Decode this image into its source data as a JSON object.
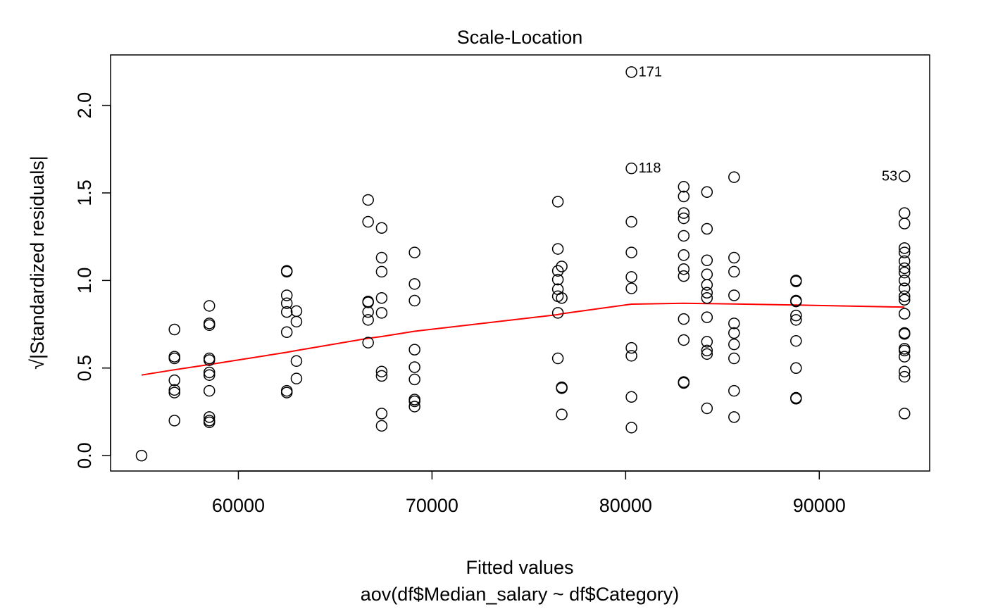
{
  "chart_data": {
    "type": "scatter",
    "title": "Scale-Location",
    "xlabel": "Fitted values",
    "subtitle": "aov(df$Median_salary ~ df$Category)",
    "ylabel_prefix": "√",
    "ylabel": "|Standardized residuals|",
    "xlim": [
      53400,
      95700
    ],
    "ylim": [
      -0.088,
      2.288
    ],
    "xticks": [
      60000,
      70000,
      80000,
      90000
    ],
    "yticks": [
      0.0,
      0.5,
      1.0,
      1.5,
      2.0
    ],
    "xtick_labels": [
      "60000",
      "70000",
      "80000",
      "90000"
    ],
    "ytick_labels": [
      "0.0",
      "0.5",
      "1.0",
      "1.5",
      "2.0"
    ],
    "grid": false,
    "legend": "none",
    "colors": {
      "points": "#000000",
      "smooth": "#ff0000"
    },
    "points": [
      {
        "x": 55000,
        "y": 0.0
      },
      {
        "x": 56700,
        "y": 0.72
      },
      {
        "x": 56700,
        "y": 0.565
      },
      {
        "x": 56700,
        "y": 0.555
      },
      {
        "x": 56700,
        "y": 0.43
      },
      {
        "x": 56700,
        "y": 0.375
      },
      {
        "x": 56700,
        "y": 0.36
      },
      {
        "x": 56700,
        "y": 0.2
      },
      {
        "x": 58500,
        "y": 0.855
      },
      {
        "x": 58500,
        "y": 0.755
      },
      {
        "x": 58500,
        "y": 0.745
      },
      {
        "x": 58500,
        "y": 0.555
      },
      {
        "x": 58500,
        "y": 0.545
      },
      {
        "x": 58500,
        "y": 0.475
      },
      {
        "x": 58500,
        "y": 0.46
      },
      {
        "x": 58500,
        "y": 0.37
      },
      {
        "x": 58500,
        "y": 0.22
      },
      {
        "x": 58500,
        "y": 0.2
      },
      {
        "x": 58500,
        "y": 0.19
      },
      {
        "x": 62500,
        "y": 1.055
      },
      {
        "x": 62500,
        "y": 1.05
      },
      {
        "x": 62500,
        "y": 0.915
      },
      {
        "x": 62500,
        "y": 0.87
      },
      {
        "x": 62500,
        "y": 0.82
      },
      {
        "x": 62500,
        "y": 0.705
      },
      {
        "x": 62500,
        "y": 0.37
      },
      {
        "x": 62500,
        "y": 0.36
      },
      {
        "x": 63000,
        "y": 0.825
      },
      {
        "x": 63000,
        "y": 0.765
      },
      {
        "x": 63000,
        "y": 0.54
      },
      {
        "x": 63000,
        "y": 0.44
      },
      {
        "x": 66700,
        "y": 1.46
      },
      {
        "x": 66700,
        "y": 1.335
      },
      {
        "x": 66700,
        "y": 0.88
      },
      {
        "x": 66700,
        "y": 0.875
      },
      {
        "x": 66700,
        "y": 0.82
      },
      {
        "x": 66700,
        "y": 0.775
      },
      {
        "x": 66700,
        "y": 0.645
      },
      {
        "x": 67400,
        "y": 1.3
      },
      {
        "x": 67400,
        "y": 1.13
      },
      {
        "x": 67400,
        "y": 1.05
      },
      {
        "x": 67400,
        "y": 0.9
      },
      {
        "x": 67400,
        "y": 0.815
      },
      {
        "x": 67400,
        "y": 0.48
      },
      {
        "x": 67400,
        "y": 0.455
      },
      {
        "x": 67400,
        "y": 0.24
      },
      {
        "x": 67400,
        "y": 0.17
      },
      {
        "x": 69100,
        "y": 1.16
      },
      {
        "x": 69100,
        "y": 0.98
      },
      {
        "x": 69100,
        "y": 0.885
      },
      {
        "x": 69100,
        "y": 0.605
      },
      {
        "x": 69100,
        "y": 0.505
      },
      {
        "x": 69100,
        "y": 0.435
      },
      {
        "x": 69100,
        "y": 0.32
      },
      {
        "x": 69100,
        "y": 0.31
      },
      {
        "x": 69100,
        "y": 0.28
      },
      {
        "x": 76500,
        "y": 1.45
      },
      {
        "x": 76500,
        "y": 1.18
      },
      {
        "x": 76500,
        "y": 1.055
      },
      {
        "x": 76500,
        "y": 1.005
      },
      {
        "x": 76500,
        "y": 0.95
      },
      {
        "x": 76500,
        "y": 0.91
      },
      {
        "x": 76500,
        "y": 0.815
      },
      {
        "x": 76500,
        "y": 0.555
      },
      {
        "x": 76700,
        "y": 1.08
      },
      {
        "x": 76700,
        "y": 0.9
      },
      {
        "x": 76700,
        "y": 0.39
      },
      {
        "x": 76700,
        "y": 0.385
      },
      {
        "x": 76700,
        "y": 0.235
      },
      {
        "x": 80300,
        "y": 2.19,
        "label": "171"
      },
      {
        "x": 80300,
        "y": 1.64,
        "label": "118"
      },
      {
        "x": 80300,
        "y": 1.335
      },
      {
        "x": 80300,
        "y": 1.16
      },
      {
        "x": 80300,
        "y": 1.02
      },
      {
        "x": 80300,
        "y": 0.955
      },
      {
        "x": 80300,
        "y": 0.615
      },
      {
        "x": 80300,
        "y": 0.57
      },
      {
        "x": 80300,
        "y": 0.335
      },
      {
        "x": 80300,
        "y": 0.16
      },
      {
        "x": 83000,
        "y": 1.535
      },
      {
        "x": 83000,
        "y": 1.48
      },
      {
        "x": 83000,
        "y": 1.385
      },
      {
        "x": 83000,
        "y": 1.355
      },
      {
        "x": 83000,
        "y": 1.255
      },
      {
        "x": 83000,
        "y": 1.145
      },
      {
        "x": 83000,
        "y": 1.065
      },
      {
        "x": 83000,
        "y": 1.025
      },
      {
        "x": 83000,
        "y": 0.78
      },
      {
        "x": 83000,
        "y": 0.66
      },
      {
        "x": 83000,
        "y": 0.42
      },
      {
        "x": 83000,
        "y": 0.415
      },
      {
        "x": 84200,
        "y": 1.505
      },
      {
        "x": 84200,
        "y": 1.295
      },
      {
        "x": 84200,
        "y": 1.115
      },
      {
        "x": 84200,
        "y": 1.035
      },
      {
        "x": 84200,
        "y": 0.975
      },
      {
        "x": 84200,
        "y": 0.93
      },
      {
        "x": 84200,
        "y": 0.9
      },
      {
        "x": 84200,
        "y": 0.79
      },
      {
        "x": 84200,
        "y": 0.65
      },
      {
        "x": 84200,
        "y": 0.6
      },
      {
        "x": 84200,
        "y": 0.58
      },
      {
        "x": 84200,
        "y": 0.27
      },
      {
        "x": 85600,
        "y": 1.59
      },
      {
        "x": 85600,
        "y": 1.13
      },
      {
        "x": 85600,
        "y": 1.05
      },
      {
        "x": 85600,
        "y": 0.915
      },
      {
        "x": 85600,
        "y": 0.755
      },
      {
        "x": 85600,
        "y": 0.7
      },
      {
        "x": 85600,
        "y": 0.635
      },
      {
        "x": 85600,
        "y": 0.555
      },
      {
        "x": 85600,
        "y": 0.37
      },
      {
        "x": 85600,
        "y": 0.22
      },
      {
        "x": 88800,
        "y": 1.0
      },
      {
        "x": 88800,
        "y": 0.995
      },
      {
        "x": 88800,
        "y": 0.885
      },
      {
        "x": 88800,
        "y": 0.88
      },
      {
        "x": 88800,
        "y": 0.8
      },
      {
        "x": 88800,
        "y": 0.775
      },
      {
        "x": 88800,
        "y": 0.655
      },
      {
        "x": 88800,
        "y": 0.5
      },
      {
        "x": 88800,
        "y": 0.33
      },
      {
        "x": 88800,
        "y": 0.325
      },
      {
        "x": 94400,
        "y": 1.595,
        "label": "53"
      },
      {
        "x": 94400,
        "y": 1.385
      },
      {
        "x": 94400,
        "y": 1.325
      },
      {
        "x": 94400,
        "y": 1.185
      },
      {
        "x": 94400,
        "y": 1.16
      },
      {
        "x": 94400,
        "y": 1.11
      },
      {
        "x": 94400,
        "y": 1.07
      },
      {
        "x": 94400,
        "y": 1.045
      },
      {
        "x": 94400,
        "y": 1.0
      },
      {
        "x": 94400,
        "y": 0.955
      },
      {
        "x": 94400,
        "y": 0.91
      },
      {
        "x": 94400,
        "y": 0.89
      },
      {
        "x": 94400,
        "y": 0.81
      },
      {
        "x": 94400,
        "y": 0.7
      },
      {
        "x": 94400,
        "y": 0.695
      },
      {
        "x": 94400,
        "y": 0.61
      },
      {
        "x": 94400,
        "y": 0.6
      },
      {
        "x": 94400,
        "y": 0.565
      },
      {
        "x": 94400,
        "y": 0.48
      },
      {
        "x": 94400,
        "y": 0.45
      },
      {
        "x": 94400,
        "y": 0.24
      }
    ],
    "smooth": {
      "name": "lowess",
      "x": [
        55000,
        56700,
        58500,
        62500,
        63000,
        66700,
        67400,
        69100,
        76500,
        76700,
        80300,
        83000,
        84200,
        85600,
        88800,
        94400
      ],
      "y": [
        0.46,
        0.49,
        0.52,
        0.59,
        0.6,
        0.67,
        0.68,
        0.71,
        0.805,
        0.81,
        0.865,
        0.87,
        0.868,
        0.866,
        0.86,
        0.848
      ]
    }
  }
}
